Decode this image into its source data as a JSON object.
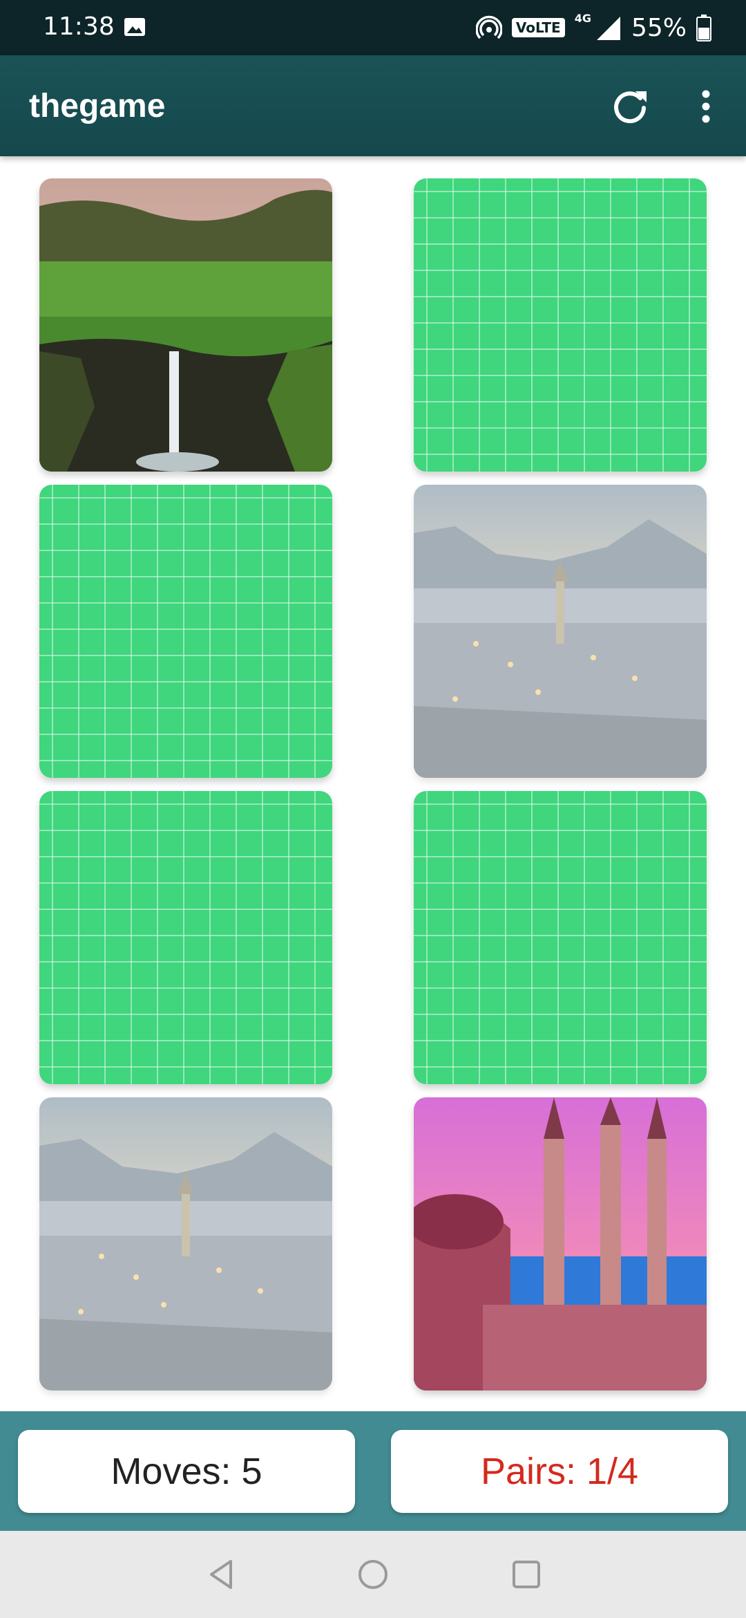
{
  "status_bar": {
    "time": "11:38",
    "network_label": "4G",
    "volte_label": "VoLTE",
    "battery": "55%"
  },
  "app_bar": {
    "title": "thegame",
    "icons": [
      "refresh-icon",
      "more-vert-icon"
    ]
  },
  "board": {
    "columns": 2,
    "rows": 4,
    "cards": [
      {
        "state": "face-up",
        "image": "waterfall-cliffs"
      },
      {
        "state": "face-down"
      },
      {
        "state": "face-down"
      },
      {
        "state": "matched",
        "image": "snowy-town"
      },
      {
        "state": "face-down"
      },
      {
        "state": "face-down"
      },
      {
        "state": "matched",
        "image": "snowy-town"
      },
      {
        "state": "face-up",
        "image": "mosque-minarets"
      }
    ]
  },
  "stats": {
    "moves_label": "Moves: 5",
    "pairs_label": "Pairs: 1/4"
  },
  "colors": {
    "app_bar": "#15484c",
    "status_bar": "#0d2428",
    "card_back": "#3fd67d",
    "bottom_panel": "#428b92",
    "pairs_text": "#d42a1d"
  },
  "nav_bar": {
    "icons": [
      "back-icon",
      "home-icon",
      "recents-icon"
    ]
  }
}
